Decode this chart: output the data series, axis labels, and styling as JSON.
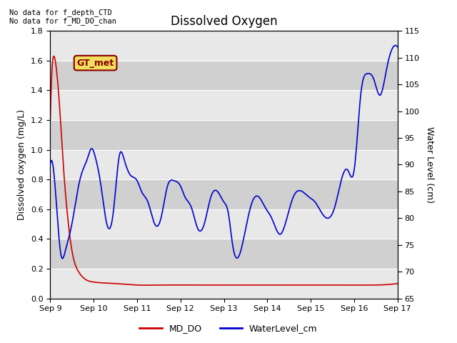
{
  "title": "Dissolved Oxygen",
  "ylabel_left": "Dissolved oxygen (mg/L)",
  "ylabel_right": "Water Level (cm)",
  "ylim_left": [
    0.0,
    1.8
  ],
  "ylim_right": [
    65,
    115
  ],
  "yticks_left": [
    0.0,
    0.2,
    0.4,
    0.6,
    0.8,
    1.0,
    1.2,
    1.4,
    1.6,
    1.8
  ],
  "yticks_right": [
    65,
    70,
    75,
    80,
    85,
    90,
    95,
    100,
    105,
    110,
    115
  ],
  "text_annotations": [
    "No data for f_depth_CTD",
    "No data for f_MD_DO_chan"
  ],
  "gt_met_label": "GT_met",
  "legend_entries": [
    "MD_DO",
    "WaterLevel_cm"
  ],
  "color_red": "#cc0000",
  "color_blue": "#0000cc",
  "background_color": "#ffffff",
  "plot_bg_color": "#e0e0e0",
  "band_color_light": "#e8e8e8",
  "band_color_dark": "#d0d0d0",
  "grid_color": "#ffffff",
  "xtick_labels": [
    "Sep 9",
    "Sep 10",
    "Sep 11",
    "Sep 12",
    "Sep 13",
    "Sep 14",
    "Sep 15",
    "Sep 16",
    "Sep 17"
  ]
}
